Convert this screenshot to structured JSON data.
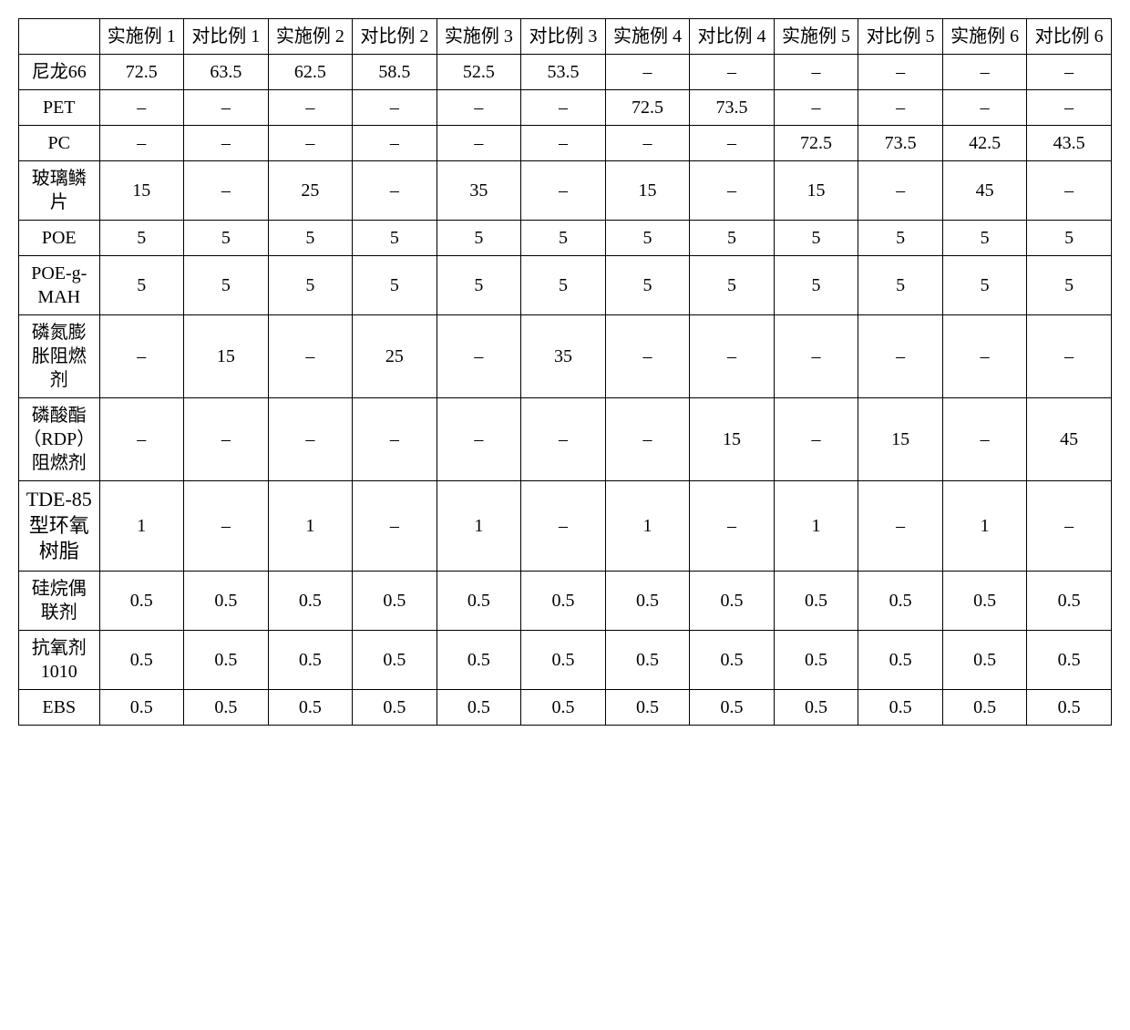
{
  "table": {
    "columns": [
      "",
      "实施例 1",
      "对比例 1",
      "实施例 2",
      "对比例 2",
      "实施例 3",
      "对比例 3",
      "实施例 4",
      "对比例 4",
      "实施例 5",
      "对比例 5",
      "实施例 6",
      "对比例 6"
    ],
    "rows": [
      {
        "label": "尼龙66",
        "cells": [
          "72.5",
          "63.5",
          "62.5",
          "58.5",
          "52.5",
          "53.5",
          "–",
          "–",
          "–",
          "–",
          "–",
          "–"
        ]
      },
      {
        "label": "PET",
        "cells": [
          "–",
          "–",
          "–",
          "–",
          "–",
          "–",
          "72.5",
          "73.5",
          "–",
          "–",
          "–",
          "–"
        ]
      },
      {
        "label": "PC",
        "cells": [
          "–",
          "–",
          "–",
          "–",
          "–",
          "–",
          "–",
          "–",
          "72.5",
          "73.5",
          "42.5",
          "43.5"
        ]
      },
      {
        "label": "玻璃鳞片",
        "cells": [
          "15",
          "–",
          "25",
          "–",
          "35",
          "–",
          "15",
          "–",
          "15",
          "–",
          "45",
          "–"
        ]
      },
      {
        "label": "POE",
        "cells": [
          "5",
          "5",
          "5",
          "5",
          "5",
          "5",
          "5",
          "5",
          "5",
          "5",
          "5",
          "5"
        ]
      },
      {
        "label": "POE-g-MAH",
        "cells": [
          "5",
          "5",
          "5",
          "5",
          "5",
          "5",
          "5",
          "5",
          "5",
          "5",
          "5",
          "5"
        ]
      },
      {
        "label": "磷氮膨胀阻燃剂",
        "cells": [
          "–",
          "15",
          "–",
          "25",
          "–",
          "35",
          "–",
          "–",
          "–",
          "–",
          "–",
          "–"
        ]
      },
      {
        "label": "磷酸酯（RDP）阻燃剂",
        "cells": [
          "–",
          "–",
          "–",
          "–",
          "–",
          "–",
          "–",
          "15",
          "–",
          "15",
          "–",
          "45"
        ]
      },
      {
        "label": "TDE-85型环氧树脂",
        "cells": [
          "1",
          "–",
          "1",
          "–",
          "1",
          "–",
          "1",
          "–",
          "1",
          "–",
          "1",
          "–"
        ],
        "tall": true
      },
      {
        "label": "硅烷偶联剂",
        "cells": [
          "0.5",
          "0.5",
          "0.5",
          "0.5",
          "0.5",
          "0.5",
          "0.5",
          "0.5",
          "0.5",
          "0.5",
          "0.5",
          "0.5"
        ]
      },
      {
        "label": "抗氧剂1010",
        "cells": [
          "0.5",
          "0.5",
          "0.5",
          "0.5",
          "0.5",
          "0.5",
          "0.5",
          "0.5",
          "0.5",
          "0.5",
          "0.5",
          "0.5"
        ]
      },
      {
        "label": "EBS",
        "cells": [
          "0.5",
          "0.5",
          "0.5",
          "0.5",
          "0.5",
          "0.5",
          "0.5",
          "0.5",
          "0.5",
          "0.5",
          "0.5",
          "0.5"
        ]
      }
    ]
  }
}
